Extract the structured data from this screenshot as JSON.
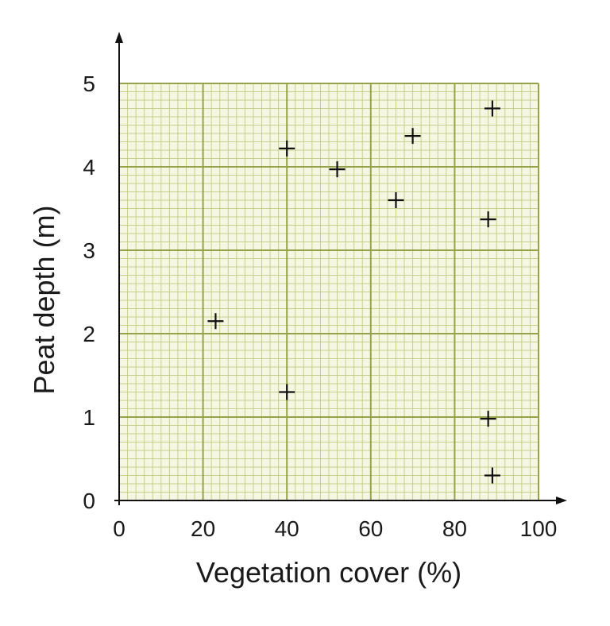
{
  "chart_data": {
    "type": "scatter",
    "title": "",
    "xlabel": "Vegetation cover (%)",
    "ylabel": "Peat depth (m)",
    "xlim": [
      0,
      100
    ],
    "ylim": [
      0,
      5
    ],
    "x_ticks": [
      "0",
      "20",
      "40",
      "60",
      "80",
      "100"
    ],
    "y_ticks": [
      "0",
      "1",
      "2",
      "3",
      "4",
      "5"
    ],
    "grid": true,
    "marker": "plus",
    "points": [
      {
        "x": 23,
        "y": 2.15
      },
      {
        "x": 40,
        "y": 4.22
      },
      {
        "x": 40,
        "y": 1.3
      },
      {
        "x": 52,
        "y": 3.97
      },
      {
        "x": 66,
        "y": 3.6
      },
      {
        "x": 70,
        "y": 4.37
      },
      {
        "x": 88,
        "y": 3.37
      },
      {
        "x": 89,
        "y": 4.7
      },
      {
        "x": 88,
        "y": 0.98
      },
      {
        "x": 89,
        "y": 0.3
      }
    ],
    "colors": {
      "background": "#f6f7e2",
      "minor_grid": "#c8cf8c",
      "major_grid": "#98a24a",
      "axis": "#111111",
      "marker": "#111111"
    }
  }
}
